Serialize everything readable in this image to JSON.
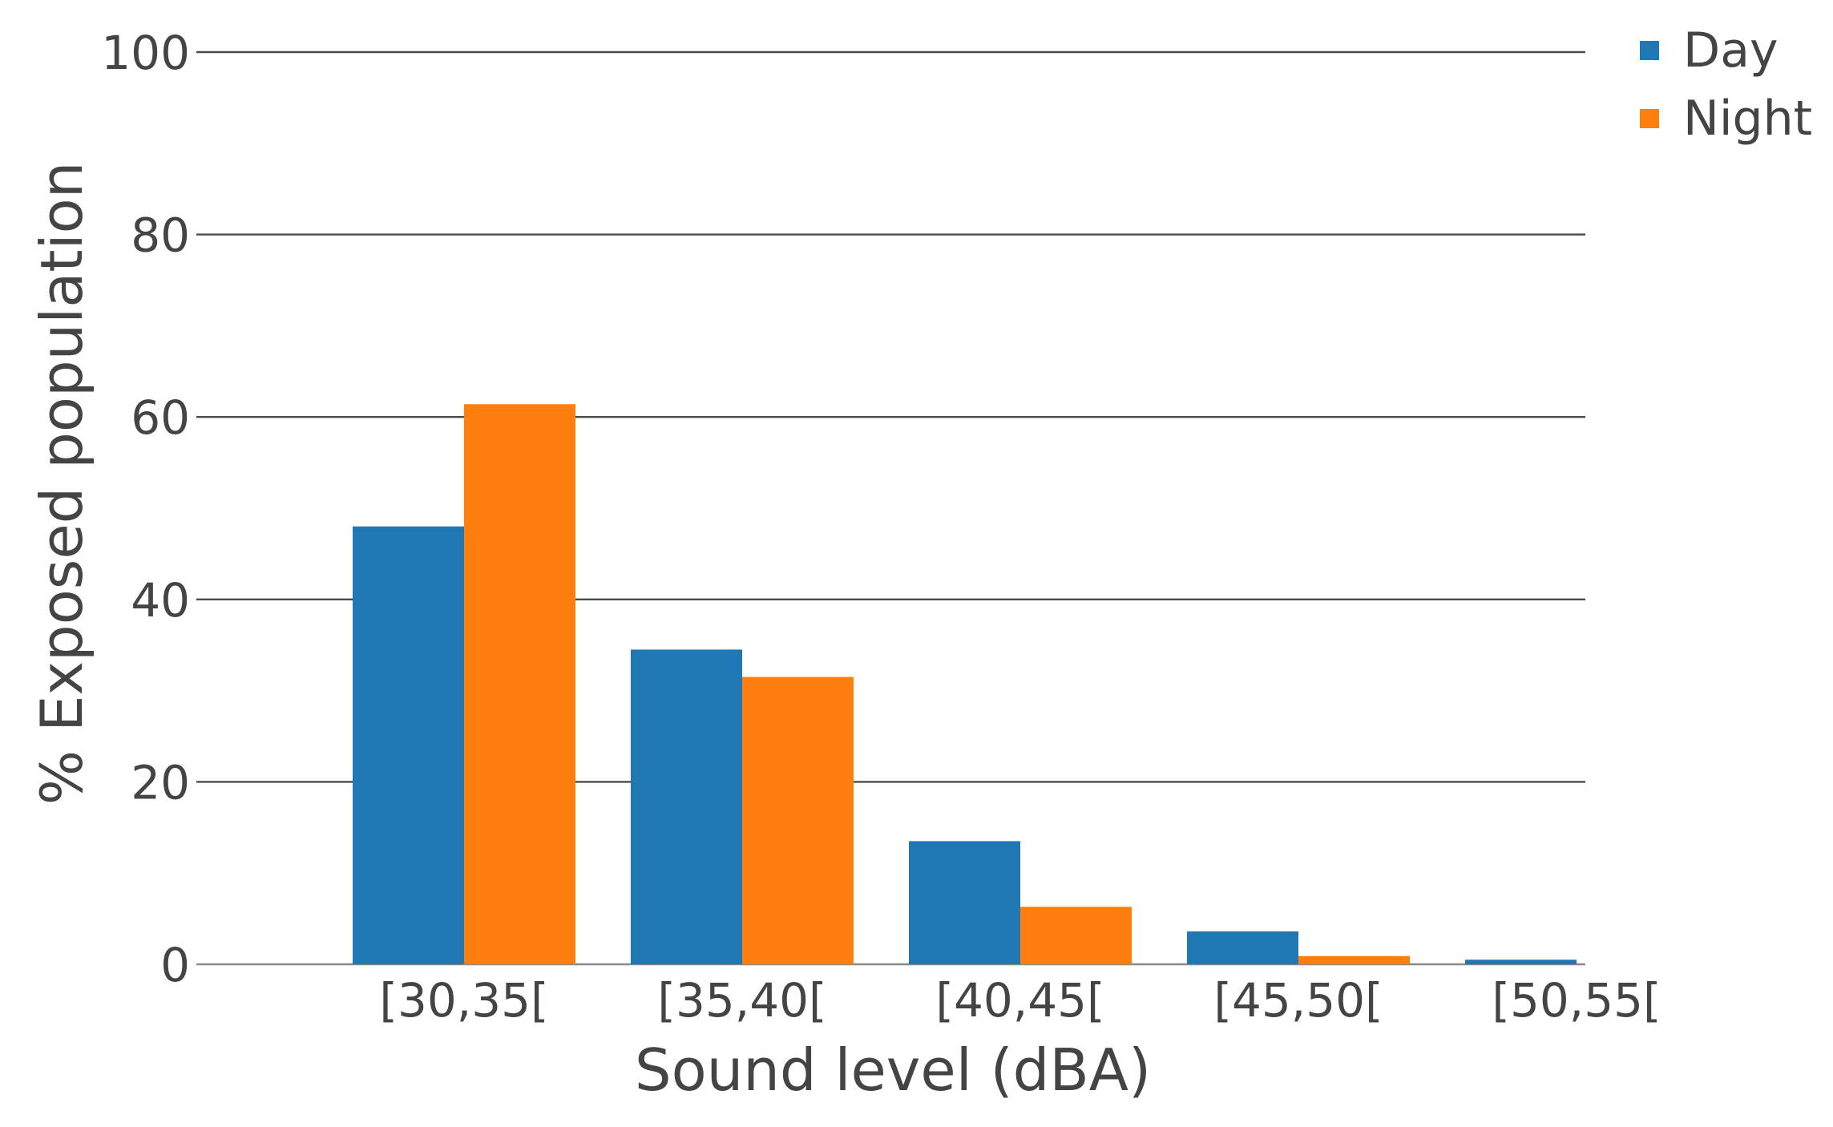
{
  "chart_data": {
    "type": "bar",
    "xlabel": "Sound level (dBA)",
    "ylabel": "% Exposed population",
    "categories": [
      "[30,35[",
      "[35,40[",
      "[40,45[",
      "[45,50[",
      "[50,55["
    ],
    "series": [
      {
        "name": "Day",
        "color": "#1f77b4",
        "values": [
          48,
          34.5,
          13.5,
          3.6,
          0.5
        ]
      },
      {
        "name": "Night",
        "color": "#ff7f0e",
        "values": [
          61.4,
          31.5,
          6.3,
          0.9,
          0
        ]
      }
    ],
    "ylim": [
      0,
      100
    ],
    "yticks": [
      "0",
      "20",
      "40",
      "60",
      "80",
      "100"
    ],
    "grid": true,
    "legend_position": "top-right"
  }
}
